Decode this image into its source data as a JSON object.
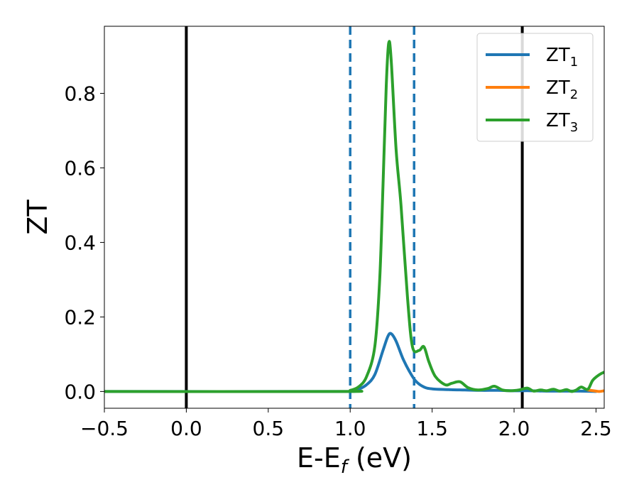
{
  "chart_data": {
    "type": "line",
    "xlabel": {
      "main": "E-E",
      "sub": "f",
      "rest": " (eV)"
    },
    "ylabel": "ZT",
    "xlim": [
      -0.5,
      2.55
    ],
    "ylim": [
      -0.045,
      0.98
    ],
    "x_ticks": [
      -0.5,
      0.0,
      0.5,
      1.0,
      1.5,
      2.0,
      2.5
    ],
    "x_tick_labels": [
      "−0.5",
      "0.0",
      "0.5",
      "1.0",
      "1.5",
      "2.0",
      "2.5"
    ],
    "y_ticks": [
      0.0,
      0.2,
      0.4,
      0.6,
      0.8
    ],
    "y_tick_labels": [
      "0.0",
      "0.2",
      "0.4",
      "0.6",
      "0.8"
    ],
    "grid": false,
    "legend_position": "top-right",
    "vertical_lines": [
      {
        "x": 0.0,
        "style": "solid",
        "color": "#000000"
      },
      {
        "x": 1.0,
        "style": "dashed",
        "color": "#1f77b4"
      },
      {
        "x": 1.39,
        "style": "dashed",
        "color": "#1f77b4"
      },
      {
        "x": 2.05,
        "style": "solid",
        "color": "#000000"
      }
    ],
    "series": [
      {
        "name": "ZT",
        "sub": "1",
        "color": "#1f77b4",
        "x": [
          -0.5,
          0.9,
          1.0,
          1.05,
          1.1,
          1.15,
          1.2,
          1.23,
          1.25,
          1.28,
          1.32,
          1.36,
          1.4,
          1.45,
          1.5,
          1.6,
          1.7,
          1.8,
          1.9,
          2.0,
          2.1,
          2.2,
          2.3,
          2.4,
          2.5
        ],
        "y": [
          0.0,
          0.0,
          0.002,
          0.006,
          0.018,
          0.045,
          0.11,
          0.148,
          0.155,
          0.135,
          0.09,
          0.055,
          0.028,
          0.012,
          0.007,
          0.005,
          0.004,
          0.003,
          0.003,
          0.002,
          0.002,
          0.001,
          0.001,
          0.001,
          0.0
        ]
      },
      {
        "name": "ZT",
        "sub": "2",
        "color": "#ff7f0e",
        "x": [
          2.45,
          2.5,
          2.52,
          2.55
        ],
        "y": [
          0.004,
          0.001,
          0.0,
          0.002
        ]
      },
      {
        "name": "ZT",
        "sub": "3",
        "color": "#2ca02c",
        "x": [
          -0.5,
          0.95,
          1.0,
          1.05,
          1.1,
          1.15,
          1.18,
          1.2,
          1.22,
          1.235,
          1.25,
          1.28,
          1.31,
          1.35,
          1.38,
          1.42,
          1.45,
          1.48,
          1.52,
          1.58,
          1.62,
          1.67,
          1.72,
          1.78,
          1.84,
          1.88,
          1.93,
          1.98,
          2.03,
          2.08,
          2.12,
          2.16,
          2.2,
          2.24,
          2.28,
          2.32,
          2.35,
          2.38,
          2.41,
          2.45,
          2.48,
          2.52,
          2.55
        ],
        "y": [
          0.0,
          0.0,
          0.003,
          0.012,
          0.04,
          0.12,
          0.3,
          0.55,
          0.82,
          0.935,
          0.89,
          0.65,
          0.5,
          0.25,
          0.12,
          0.11,
          0.12,
          0.08,
          0.04,
          0.018,
          0.022,
          0.026,
          0.01,
          0.004,
          0.008,
          0.014,
          0.004,
          0.002,
          0.004,
          0.009,
          0.001,
          0.004,
          0.002,
          0.006,
          0.001,
          0.005,
          0.0,
          0.004,
          0.012,
          0.006,
          0.03,
          0.045,
          0.052
        ]
      }
    ]
  }
}
